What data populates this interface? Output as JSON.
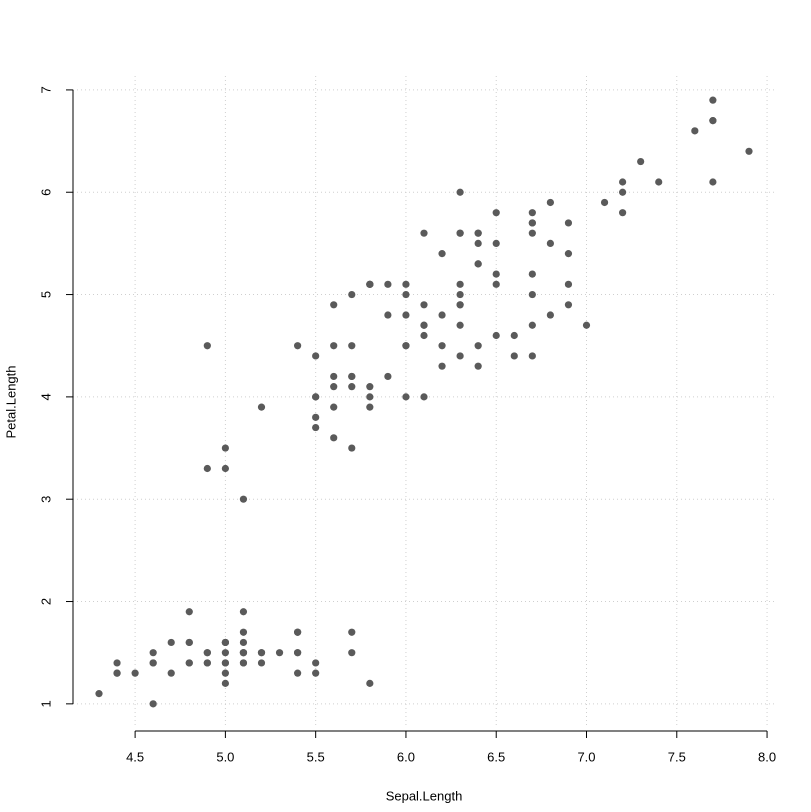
{
  "chart_data": {
    "type": "scatter",
    "xlabel": "Sepal.Length",
    "ylabel": "Petal.Length",
    "x": [
      5.1,
      4.9,
      4.7,
      4.6,
      5.0,
      5.4,
      4.6,
      5.0,
      4.4,
      4.9,
      5.4,
      4.8,
      4.8,
      4.3,
      5.8,
      5.7,
      5.4,
      5.1,
      5.7,
      5.1,
      5.4,
      5.1,
      4.6,
      5.1,
      4.8,
      5.0,
      5.0,
      5.2,
      5.2,
      4.7,
      4.8,
      5.4,
      5.2,
      5.5,
      4.9,
      5.0,
      5.5,
      4.9,
      4.4,
      5.1,
      5.0,
      4.5,
      4.4,
      5.0,
      5.1,
      4.8,
      5.1,
      4.6,
      5.3,
      5.0,
      7.0,
      6.4,
      6.9,
      5.5,
      6.5,
      5.7,
      6.3,
      4.9,
      6.6,
      5.2,
      5.0,
      5.9,
      6.0,
      6.1,
      5.6,
      6.7,
      5.6,
      5.8,
      6.2,
      5.6,
      5.9,
      6.1,
      6.3,
      6.1,
      6.4,
      6.6,
      6.8,
      6.7,
      6.0,
      5.7,
      5.5,
      5.5,
      5.8,
      6.0,
      5.4,
      6.0,
      6.7,
      6.3,
      5.6,
      5.5,
      5.5,
      6.1,
      5.8,
      5.0,
      5.6,
      5.7,
      5.7,
      6.2,
      5.1,
      5.7,
      6.3,
      5.8,
      7.1,
      6.3,
      6.5,
      7.6,
      4.9,
      7.3,
      6.7,
      7.2,
      6.5,
      6.4,
      6.8,
      5.7,
      5.8,
      6.4,
      6.5,
      7.7,
      7.7,
      6.0,
      6.9,
      5.6,
      7.7,
      6.3,
      6.7,
      7.2,
      6.2,
      6.1,
      6.4,
      7.2,
      7.4,
      7.9,
      6.4,
      6.3,
      6.1,
      7.7,
      6.3,
      6.4,
      6.0,
      6.9,
      6.7,
      6.9,
      5.8,
      6.8,
      6.7,
      6.7,
      6.3,
      6.5,
      6.2,
      5.9
    ],
    "values": [
      1.4,
      1.4,
      1.3,
      1.5,
      1.4,
      1.7,
      1.4,
      1.5,
      1.4,
      1.5,
      1.5,
      1.6,
      1.4,
      1.1,
      1.2,
      1.5,
      1.3,
      1.4,
      1.7,
      1.5,
      1.7,
      1.5,
      1.0,
      1.7,
      1.9,
      1.6,
      1.6,
      1.5,
      1.4,
      1.6,
      1.6,
      1.5,
      1.5,
      1.4,
      1.5,
      1.2,
      1.3,
      1.4,
      1.3,
      1.5,
      1.3,
      1.3,
      1.3,
      1.6,
      1.9,
      1.4,
      1.6,
      1.4,
      1.5,
      1.4,
      4.7,
      4.5,
      4.9,
      4.0,
      4.6,
      4.5,
      4.7,
      3.3,
      4.6,
      3.9,
      3.5,
      4.2,
      4.0,
      4.7,
      3.6,
      4.4,
      4.5,
      4.1,
      4.5,
      3.9,
      4.8,
      4.0,
      4.9,
      4.7,
      4.3,
      4.4,
      4.8,
      5.0,
      4.5,
      3.5,
      3.8,
      3.7,
      3.9,
      5.1,
      4.5,
      4.5,
      4.7,
      4.4,
      4.1,
      4.0,
      4.4,
      4.6,
      4.0,
      3.3,
      4.2,
      4.2,
      4.2,
      4.3,
      3.0,
      4.1,
      6.0,
      5.1,
      5.9,
      5.6,
      5.8,
      6.6,
      4.5,
      6.3,
      5.8,
      6.1,
      5.1,
      5.3,
      5.5,
      5.0,
      5.1,
      5.3,
      5.5,
      6.7,
      6.9,
      5.0,
      5.7,
      4.9,
      6.7,
      4.9,
      5.7,
      6.0,
      4.8,
      4.9,
      5.6,
      5.8,
      6.1,
      6.4,
      5.6,
      5.1,
      5.6,
      6.1,
      5.6,
      5.5,
      4.8,
      5.4,
      5.6,
      5.1,
      5.1,
      5.9,
      5.7,
      5.2,
      5.0,
      5.2,
      5.4,
      5.1
    ],
    "color": "#5a5a5a",
    "xlim": [
      4.156,
      8.044
    ],
    "ylim": [
      0.764,
      7.136
    ],
    "xticks": [
      4.5,
      {
        "value": 5,
        "label": "5.0"
      },
      5.5,
      {
        "value": 6,
        "label": "6.0"
      },
      6.5,
      {
        "value": 7,
        "label": "7.0"
      },
      7.5,
      {
        "value": 8,
        "label": "8.0"
      }
    ],
    "yticks": [
      1,
      2,
      3,
      4,
      5,
      6,
      7
    ],
    "grid": true
  }
}
